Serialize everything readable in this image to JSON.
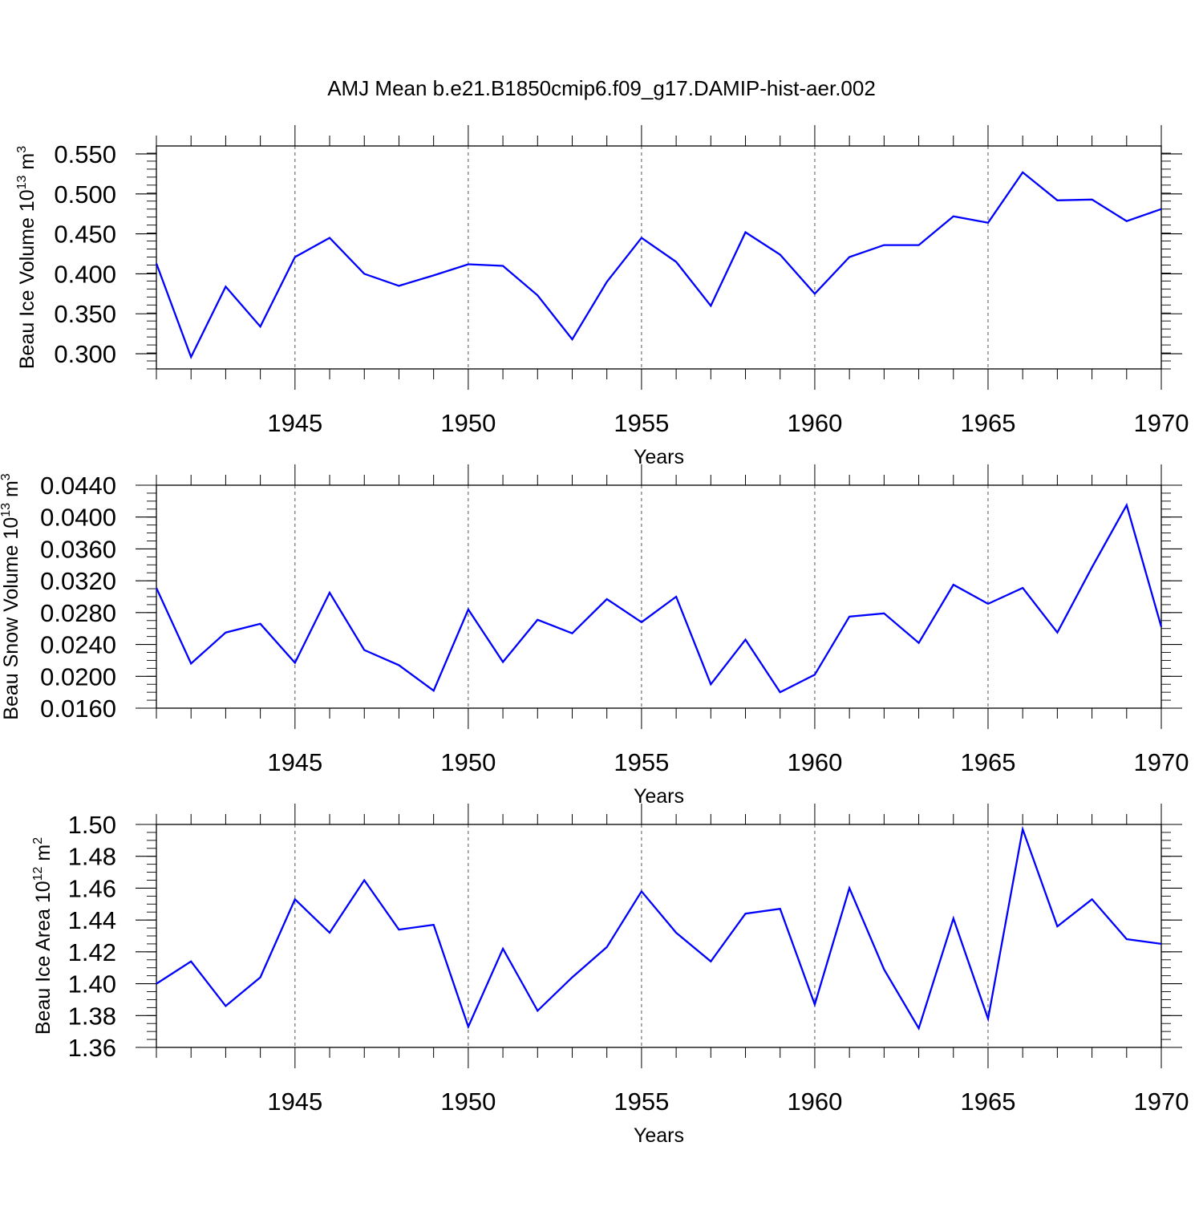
{
  "chart_data": {
    "type": "line",
    "title": "AMJ Mean b.e21.B1850cmip6.f09_g17.DAMIP-hist-aer.002",
    "line_color": "#0000ff",
    "x": [
      1941,
      1942,
      1943,
      1944,
      1945,
      1946,
      1947,
      1948,
      1949,
      1950,
      1951,
      1952,
      1953,
      1954,
      1955,
      1956,
      1957,
      1958,
      1959,
      1960,
      1961,
      1962,
      1963,
      1964,
      1965,
      1966,
      1967,
      1968,
      1969,
      1970
    ],
    "xlim": [
      1941,
      1970
    ],
    "xticks": [
      1945,
      1950,
      1955,
      1960,
      1965,
      1970
    ],
    "xlabel": "Years",
    "grid": "vertical dashed at major x ticks",
    "panels": [
      {
        "name": "ice-volume",
        "ylabel": "Beau Ice Volume 10",
        "ylabel_exp": "13",
        "ylabel_unit": " m",
        "ylabel_unit_exp": "3",
        "ylim": [
          0.281,
          0.56
        ],
        "yticks": [
          0.3,
          0.35,
          0.4,
          0.45,
          0.5,
          0.55
        ],
        "ytick_labels": [
          "0.300",
          "0.350",
          "0.400",
          "0.450",
          "0.500",
          "0.550"
        ],
        "minor_step": 0.01,
        "values": [
          0.413,
          0.296,
          0.384,
          0.334,
          0.421,
          0.445,
          0.4,
          0.385,
          0.398,
          0.412,
          0.41,
          0.373,
          0.318,
          0.39,
          0.445,
          0.415,
          0.36,
          0.452,
          0.424,
          0.375,
          0.421,
          0.436,
          0.436,
          0.472,
          0.464,
          0.527,
          0.492,
          0.493,
          0.466,
          0.481
        ]
      },
      {
        "name": "snow-volume",
        "ylabel": "Beau Snow Volume 10",
        "ylabel_exp": "13",
        "ylabel_unit": " m",
        "ylabel_unit_exp": "3",
        "ylim": [
          0.016,
          0.044
        ],
        "yticks": [
          0.016,
          0.02,
          0.024,
          0.028,
          0.032,
          0.036,
          0.04,
          0.044
        ],
        "ytick_labels": [
          "0.0160",
          "0.0200",
          "0.0240",
          "0.0280",
          "0.0320",
          "0.0360",
          "0.0400",
          "0.0440"
        ],
        "minor_step": 0.001,
        "values": [
          0.0311,
          0.0216,
          0.0255,
          0.0266,
          0.0217,
          0.0305,
          0.0233,
          0.0214,
          0.0182,
          0.0284,
          0.0218,
          0.0271,
          0.0254,
          0.0297,
          0.0268,
          0.03,
          0.019,
          0.0246,
          0.018,
          0.0202,
          0.0275,
          0.0279,
          0.0242,
          0.0315,
          0.0291,
          0.0311,
          0.0255,
          0.0337,
          0.0415,
          0.0262
        ]
      },
      {
        "name": "ice-area",
        "ylabel": "Beau Ice Area 10",
        "ylabel_exp": "12",
        "ylabel_unit": " m",
        "ylabel_unit_exp": "2",
        "ylim": [
          1.36,
          1.5
        ],
        "yticks": [
          1.36,
          1.38,
          1.4,
          1.42,
          1.44,
          1.46,
          1.48,
          1.5
        ],
        "ytick_labels": [
          "1.36",
          "1.38",
          "1.40",
          "1.42",
          "1.44",
          "1.46",
          "1.48",
          "1.50"
        ],
        "minor_step": 0.005,
        "values": [
          1.4,
          1.414,
          1.386,
          1.404,
          1.453,
          1.432,
          1.465,
          1.434,
          1.437,
          1.373,
          1.422,
          1.383,
          1.404,
          1.423,
          1.458,
          1.432,
          1.414,
          1.444,
          1.447,
          1.387,
          1.46,
          1.409,
          1.372,
          1.441,
          1.378,
          1.497,
          1.436,
          1.453,
          1.428,
          1.425
        ]
      }
    ]
  }
}
